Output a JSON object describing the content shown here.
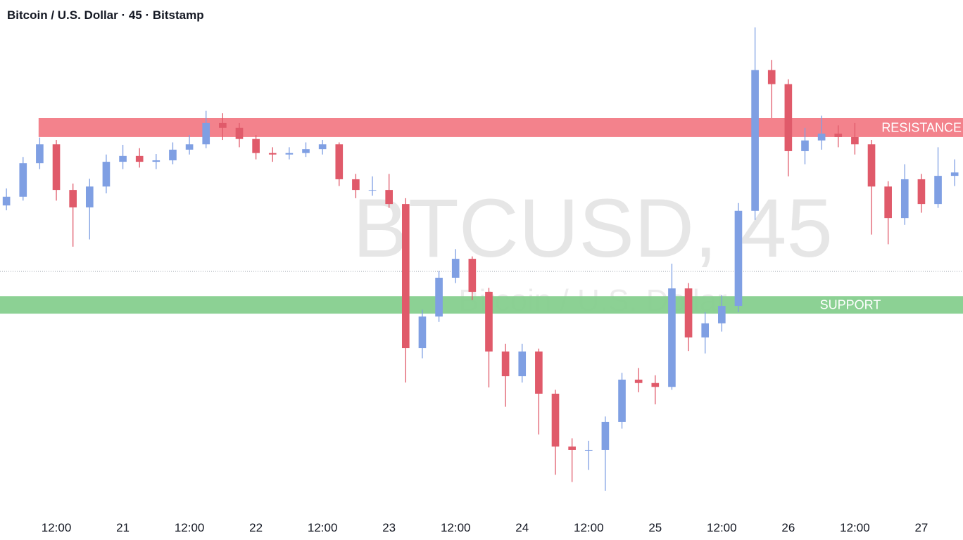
{
  "chart_data": {
    "type": "candlestick",
    "title": "Bitcoin / U.S. Dollar · 45 · Bitstamp",
    "watermark": "BTCUSD, 45",
    "watermark_subtitle": "Bitcoin / U.S. Dollar",
    "xlim": [
      1.84,
      175.5
    ],
    "ylim": [
      0,
      100
    ],
    "xticks": [
      {
        "value": 12,
        "label": "12:00"
      },
      {
        "value": 24,
        "label": "21"
      },
      {
        "value": 36,
        "label": "12:00"
      },
      {
        "value": 48,
        "label": "22"
      },
      {
        "value": 60,
        "label": "12:00"
      },
      {
        "value": 72,
        "label": "23"
      },
      {
        "value": 84,
        "label": "12:00"
      },
      {
        "value": 96,
        "label": "24"
      },
      {
        "value": 108,
        "label": "12:00"
      },
      {
        "value": 120,
        "label": "25"
      },
      {
        "value": 132,
        "label": "12:00"
      },
      {
        "value": 144,
        "label": "26"
      },
      {
        "value": 156,
        "label": "12:00"
      },
      {
        "value": 168,
        "label": "27"
      }
    ],
    "up_color": "#7f9fe3",
    "down_color": "#e05a6a",
    "price_line": 48.4,
    "zones": [
      {
        "label": "RESISTANCE",
        "from": 76.1,
        "to": 80.0,
        "xstart": 8.8,
        "color": "#f27b86"
      },
      {
        "label": "SUPPORT",
        "from": 39.7,
        "to": 43.3,
        "xstart": 1.84,
        "color": "#86cf8e"
      }
    ],
    "x": [
      3,
      6,
      9,
      12,
      15,
      18,
      21,
      24,
      27,
      30,
      33,
      36,
      39,
      42,
      45,
      48,
      51,
      54,
      57,
      60,
      63,
      66,
      69,
      72,
      75,
      78,
      81,
      84,
      87,
      90,
      93,
      96,
      99,
      102,
      105,
      108,
      111,
      114,
      117,
      120,
      123,
      126,
      129,
      132,
      135,
      138,
      141,
      144,
      147,
      150,
      153,
      156,
      159,
      162,
      165,
      168,
      171,
      174
    ],
    "open": [
      62.0,
      63.8,
      70.7,
      74.6,
      65.2,
      61.6,
      65.9,
      71.0,
      72.2,
      71.0,
      71.3,
      73.5,
      74.6,
      79.0,
      78.0,
      75.7,
      72.8,
      72.5,
      72.8,
      73.6,
      74.6,
      67.4,
      65.2,
      65.2,
      62.3,
      32.6,
      39.1,
      47.1,
      51.0,
      44.2,
      31.9,
      26.8,
      31.9,
      23.2,
      12.3,
      11.6,
      11.6,
      17.4,
      26.1,
      25.4,
      24.6,
      44.9,
      34.8,
      37.7,
      41.3,
      60.9,
      89.9,
      87.0,
      73.2,
      75.4,
      76.8,
      76.1,
      74.6,
      65.9,
      59.4,
      67.4,
      62.3,
      68.1
    ],
    "high": [
      65.5,
      72.0,
      76.0,
      75.5,
      66.5,
      67.5,
      72.5,
      74.5,
      73.8,
      72.6,
      75.0,
      76.5,
      81.5,
      81.0,
      79.0,
      76.5,
      74.0,
      74.0,
      75.0,
      75.5,
      75.0,
      68.5,
      68.0,
      68.5,
      63.5,
      40.5,
      48.5,
      53.0,
      51.5,
      45.0,
      33.5,
      33.5,
      32.5,
      24.0,
      14.0,
      13.5,
      18.5,
      27.5,
      28.5,
      27.0,
      50.0,
      46.0,
      40.0,
      43.5,
      62.5,
      98.7,
      92.0,
      88.0,
      78.0,
      80.5,
      78.5,
      79.0,
      75.5,
      67.0,
      70.5,
      68.5,
      74.0,
      71.5
    ],
    "low": [
      61.0,
      63.0,
      69.5,
      63.0,
      53.5,
      55.0,
      64.5,
      69.5,
      69.8,
      69.5,
      70.5,
      72.5,
      73.8,
      75.5,
      74.0,
      71.5,
      71.0,
      71.5,
      72.0,
      72.5,
      66.0,
      63.5,
      64.0,
      61.5,
      25.5,
      30.5,
      38.0,
      46.0,
      42.5,
      24.5,
      20.5,
      25.5,
      14.8,
      6.5,
      5.0,
      7.5,
      3.2,
      16.0,
      23.5,
      21.0,
      24.0,
      32.0,
      31.5,
      36.0,
      40.0,
      59.0,
      80.0,
      68.0,
      70.5,
      73.5,
      74.0,
      72.5,
      56.0,
      54.0,
      58.0,
      60.5,
      61.5,
      66.0
    ],
    "close": [
      63.8,
      70.7,
      74.6,
      65.2,
      61.6,
      65.9,
      71.0,
      72.2,
      71.0,
      71.3,
      73.5,
      74.6,
      79.0,
      78.0,
      75.7,
      72.8,
      72.5,
      72.8,
      73.6,
      74.6,
      67.4,
      65.2,
      65.2,
      62.3,
      32.6,
      39.1,
      47.1,
      51.0,
      44.2,
      31.9,
      26.8,
      31.9,
      23.2,
      12.3,
      11.6,
      11.6,
      17.4,
      26.1,
      25.4,
      24.6,
      44.9,
      34.8,
      37.7,
      41.3,
      60.9,
      89.9,
      87.0,
      73.2,
      75.4,
      76.8,
      76.1,
      74.6,
      65.9,
      59.4,
      67.4,
      62.3,
      68.1,
      68.8
    ]
  }
}
